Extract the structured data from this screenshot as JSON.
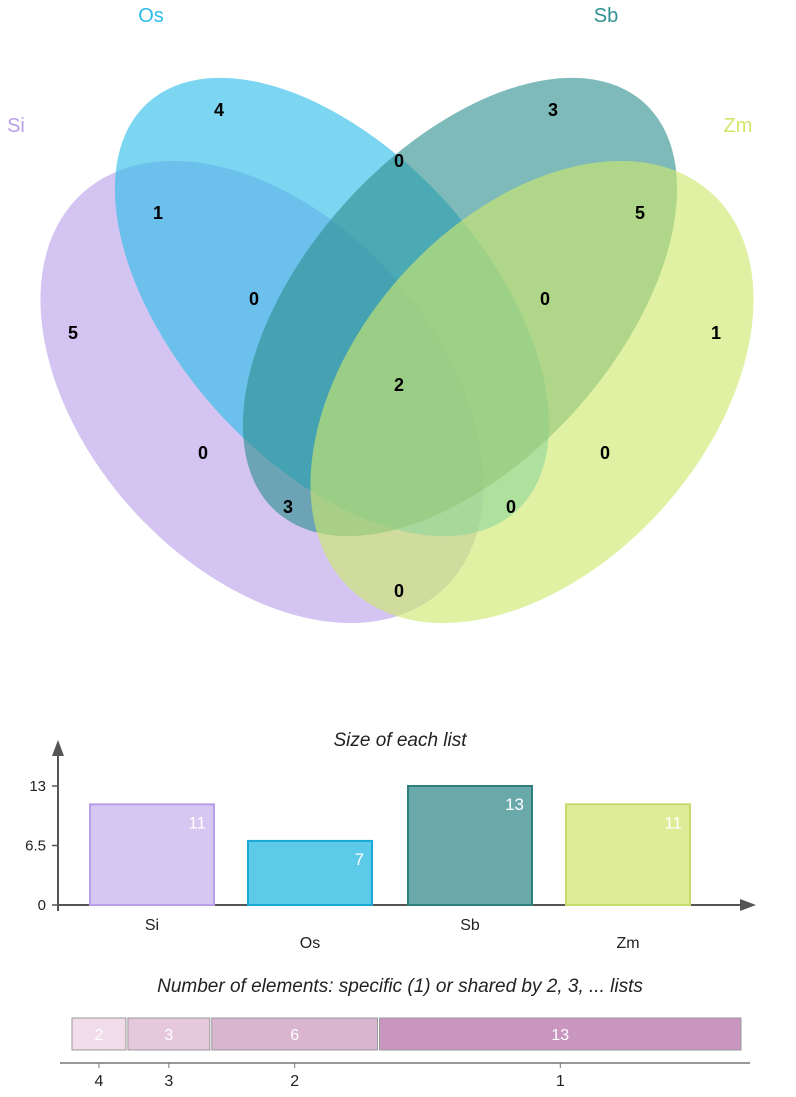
{
  "chart_data": [
    {
      "type": "venn",
      "sets": [
        {
          "name": "Si",
          "color": "#b89fe8"
        },
        {
          "name": "Os",
          "color": "#2cbde8"
        },
        {
          "name": "Sb",
          "color": "#2f8f90"
        },
        {
          "name": "Zm",
          "color": "#cfe86a"
        }
      ],
      "regions": [
        {
          "sets": [
            "Si"
          ],
          "value": 5
        },
        {
          "sets": [
            "Os"
          ],
          "value": 4
        },
        {
          "sets": [
            "Sb"
          ],
          "value": 3
        },
        {
          "sets": [
            "Zm"
          ],
          "value": 1
        },
        {
          "sets": [
            "Si",
            "Os"
          ],
          "value": 1
        },
        {
          "sets": [
            "Os",
            "Sb"
          ],
          "value": 0
        },
        {
          "sets": [
            "Sb",
            "Zm"
          ],
          "value": 5
        },
        {
          "sets": [
            "Si",
            "Os",
            "Sb"
          ],
          "value": 0
        },
        {
          "sets": [
            "Os",
            "Sb",
            "Zm"
          ],
          "value": 0
        },
        {
          "sets": [
            "Si",
            "Os",
            "Sb",
            "Zm"
          ],
          "value": 2
        },
        {
          "sets": [
            "Si",
            "Sb"
          ],
          "value": 0
        },
        {
          "sets": [
            "Os",
            "Zm"
          ],
          "value": 0
        },
        {
          "sets": [
            "Si",
            "Sb",
            "Zm"
          ],
          "value": 3
        },
        {
          "sets": [
            "Si",
            "Os",
            "Zm"
          ],
          "value": 0
        },
        {
          "sets": [
            "Si",
            "Zm"
          ],
          "value": 0
        }
      ]
    },
    {
      "type": "bar",
      "title": "Size of each list",
      "categories": [
        "Si",
        "Os",
        "Sb",
        "Zm"
      ],
      "values": [
        11,
        7,
        13,
        11
      ],
      "colors": [
        "#d5c6f2",
        "#5ccbea",
        "#6aa9aa",
        "#dfec97"
      ],
      "borders": [
        "#b89fe8",
        "#1aa8d6",
        "#2f7f80",
        "#c4dc6a"
      ],
      "yticks": [
        "13",
        "6.5",
        "0"
      ],
      "ytick_values": [
        13,
        6.5,
        0
      ],
      "ylim": [
        0,
        13
      ]
    },
    {
      "type": "bar",
      "orientation": "horizontal-stacked",
      "title": "Number of elements: specific (1) or shared by 2, 3, ... lists",
      "segments": [
        {
          "label": "4",
          "value": 2,
          "color": "#f1dcea"
        },
        {
          "label": "3",
          "value": 3,
          "color": "#e6c8dc"
        },
        {
          "label": "2",
          "value": 6,
          "color": "#d9b5cf"
        },
        {
          "label": "1",
          "value": 13,
          "color": "#c896be"
        }
      ]
    }
  ]
}
